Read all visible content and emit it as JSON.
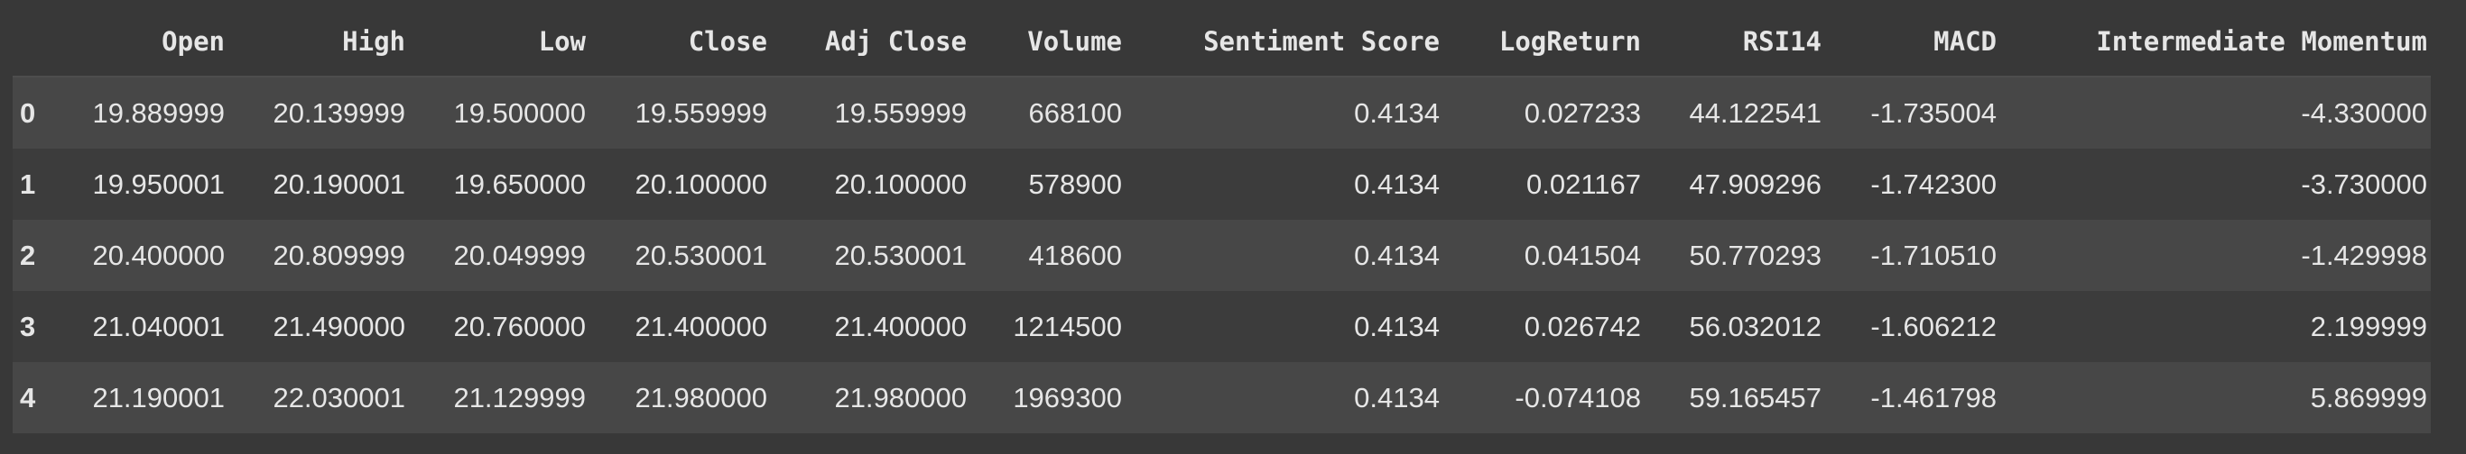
{
  "table": {
    "columns": [
      "Open",
      "High",
      "Low",
      "Close",
      "Adj Close",
      "Volume",
      "Sentiment Score",
      "LogReturn",
      "RSI14",
      "MACD",
      "Intermediate Momentum"
    ],
    "rows": [
      {
        "index": "0",
        "cells": [
          "19.889999",
          "20.139999",
          "19.500000",
          "19.559999",
          "19.559999",
          "668100",
          "0.4134",
          "0.027233",
          "44.122541",
          "-1.735004",
          "-4.330000"
        ]
      },
      {
        "index": "1",
        "cells": [
          "19.950001",
          "20.190001",
          "19.650000",
          "20.100000",
          "20.100000",
          "578900",
          "0.4134",
          "0.021167",
          "47.909296",
          "-1.742300",
          "-3.730000"
        ]
      },
      {
        "index": "2",
        "cells": [
          "20.400000",
          "20.809999",
          "20.049999",
          "20.530001",
          "20.530001",
          "418600",
          "0.4134",
          "0.041504",
          "50.770293",
          "-1.710510",
          "-1.429998"
        ]
      },
      {
        "index": "3",
        "cells": [
          "21.040001",
          "21.490000",
          "20.760000",
          "21.400000",
          "21.400000",
          "1214500",
          "0.4134",
          "0.026742",
          "56.032012",
          "-1.606212",
          "2.199999"
        ]
      },
      {
        "index": "4",
        "cells": [
          "21.190001",
          "22.030001",
          "21.129999",
          "21.980000",
          "21.980000",
          "1969300",
          "0.4134",
          "-0.074108",
          "59.165457",
          "-1.461798",
          "5.869999"
        ]
      }
    ]
  }
}
